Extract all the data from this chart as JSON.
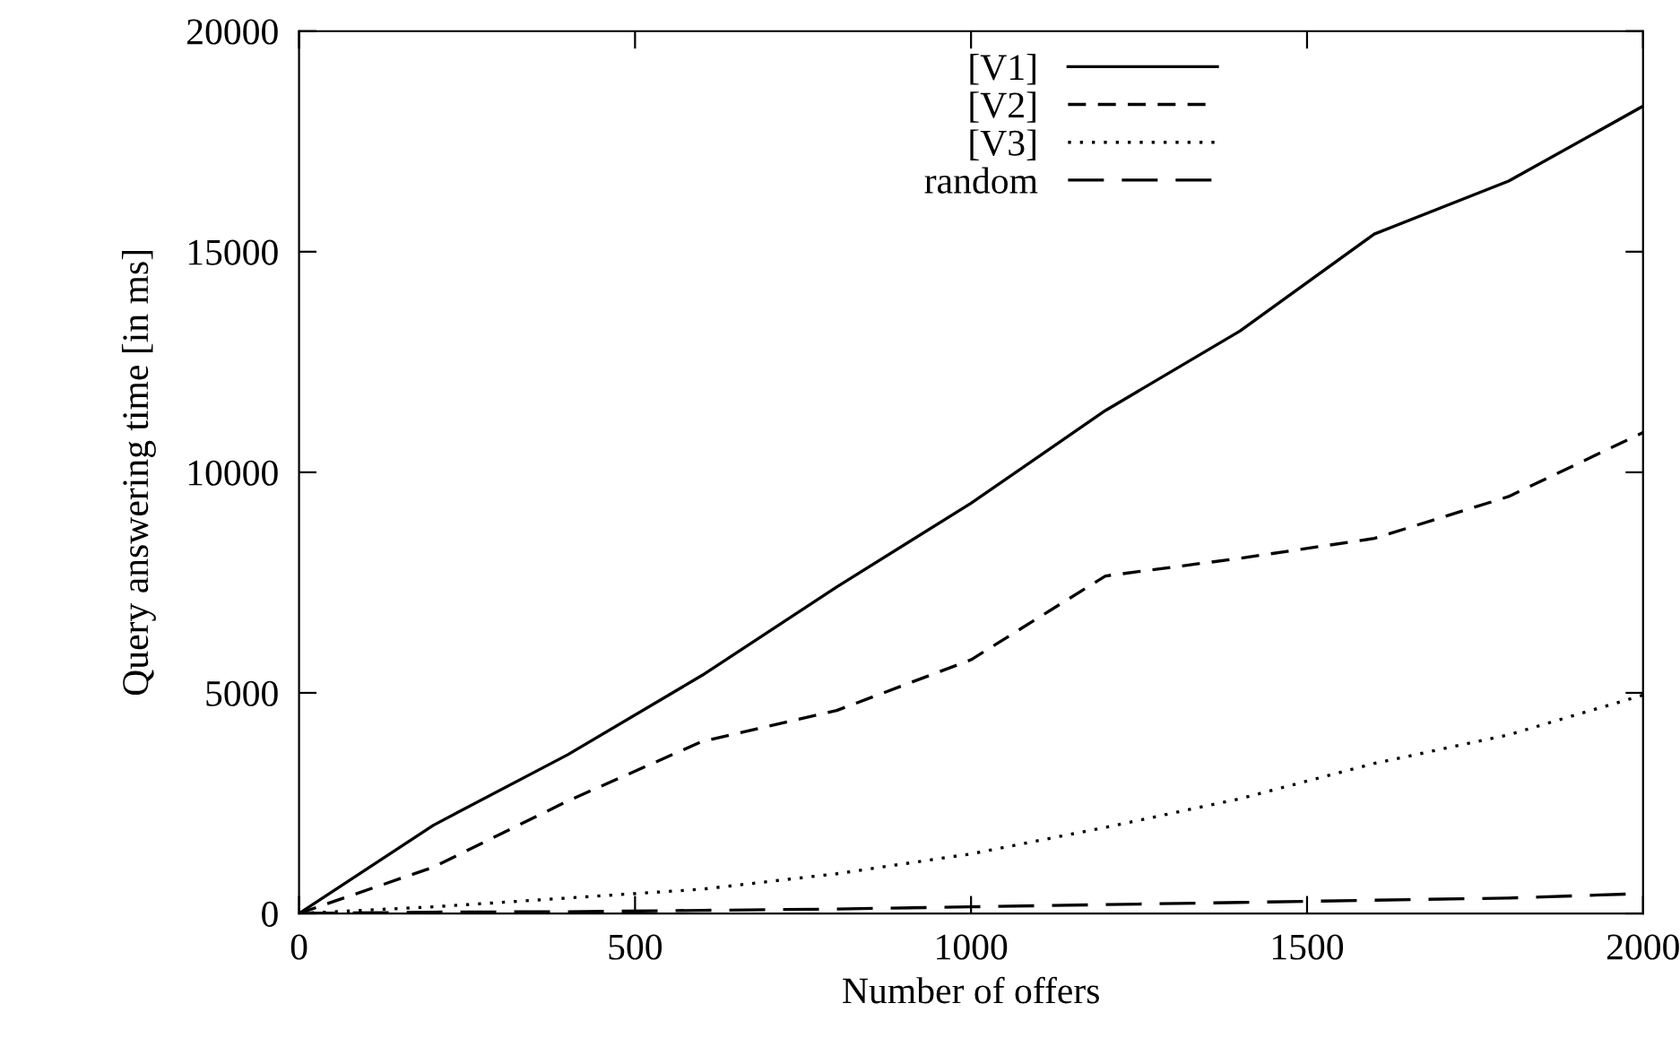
{
  "chart_data": {
    "type": "line",
    "xlabel": "Number of offers",
    "ylabel": "Query answering time [in ms]",
    "x": [
      0,
      200,
      400,
      600,
      800,
      1000,
      1200,
      1400,
      1600,
      1800,
      2000
    ],
    "series": [
      {
        "name": "[V1]",
        "color": "#000000",
        "line_style": "solid",
        "values": [
          0,
          2000,
          3600,
          5400,
          7400,
          9300,
          11400,
          13200,
          15400,
          16600,
          18300
        ]
      },
      {
        "name": "[V2]",
        "color": "#000000",
        "line_style": "dashed",
        "values": [
          0,
          1050,
          2550,
          3900,
          4600,
          5750,
          7650,
          8050,
          8500,
          9450,
          10900
        ]
      },
      {
        "name": "[V3]",
        "color": "#000000",
        "line_style": "dotted",
        "values": [
          0,
          150,
          350,
          550,
          900,
          1350,
          1950,
          2600,
          3400,
          4050,
          4950
        ]
      },
      {
        "name": "random",
        "color": "#000000",
        "line_style": "longdash",
        "values": [
          0,
          30,
          40,
          70,
          100,
          150,
          200,
          250,
          300,
          350,
          450
        ]
      }
    ],
    "xlim": [
      0,
      2000
    ],
    "xticks": [
      0,
      500,
      1000,
      1500,
      2000
    ],
    "ylim": [
      0,
      20000
    ],
    "yticks": [
      0,
      5000,
      10000,
      15000,
      20000
    ],
    "grid": false,
    "legend": "top right",
    "marker": "none"
  }
}
